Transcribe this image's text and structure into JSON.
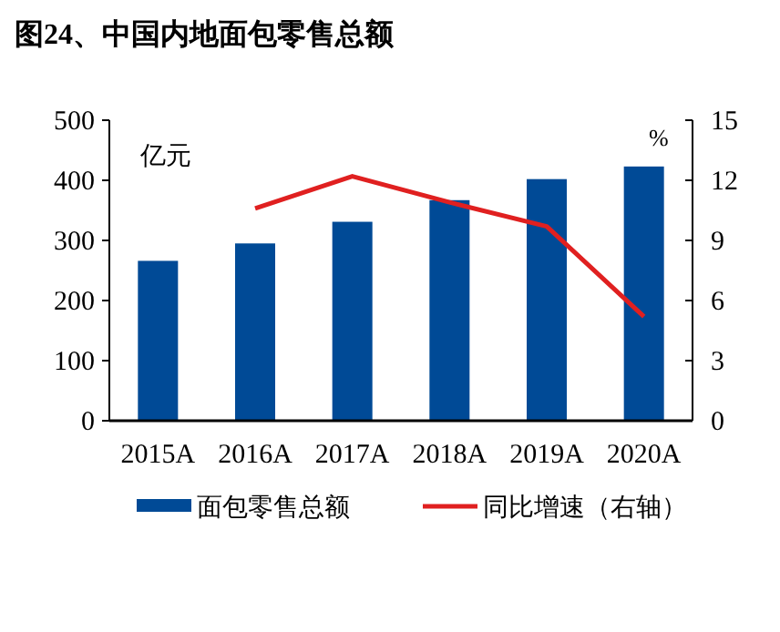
{
  "chart_data": {
    "type": "bar",
    "title": "图24、中国内地面包零售总额",
    "ylabel": "亿元",
    "y2label": "%",
    "categories": [
      "2015A",
      "2016A",
      "2017A",
      "2018A",
      "2019A",
      "2020A"
    ],
    "series": [
      {
        "name": "面包零售总额",
        "color": "#004a96",
        "values": [
          266,
          295,
          331,
          367,
          402,
          423
        ]
      },
      {
        "name": "同比增速（右轴）",
        "type": "line",
        "axis": "y2",
        "color": "#e02020",
        "values": [
          null,
          10.6,
          12.2,
          10.9,
          9.7,
          5.2
        ]
      }
    ],
    "ylim": [
      0,
      500
    ],
    "yticks": [
      0,
      100,
      200,
      300,
      400,
      500
    ],
    "y2lim": [
      0,
      15
    ],
    "y2ticks": [
      0,
      3,
      6,
      9,
      12,
      15
    ],
    "legend": "bottom",
    "grid": false
  }
}
